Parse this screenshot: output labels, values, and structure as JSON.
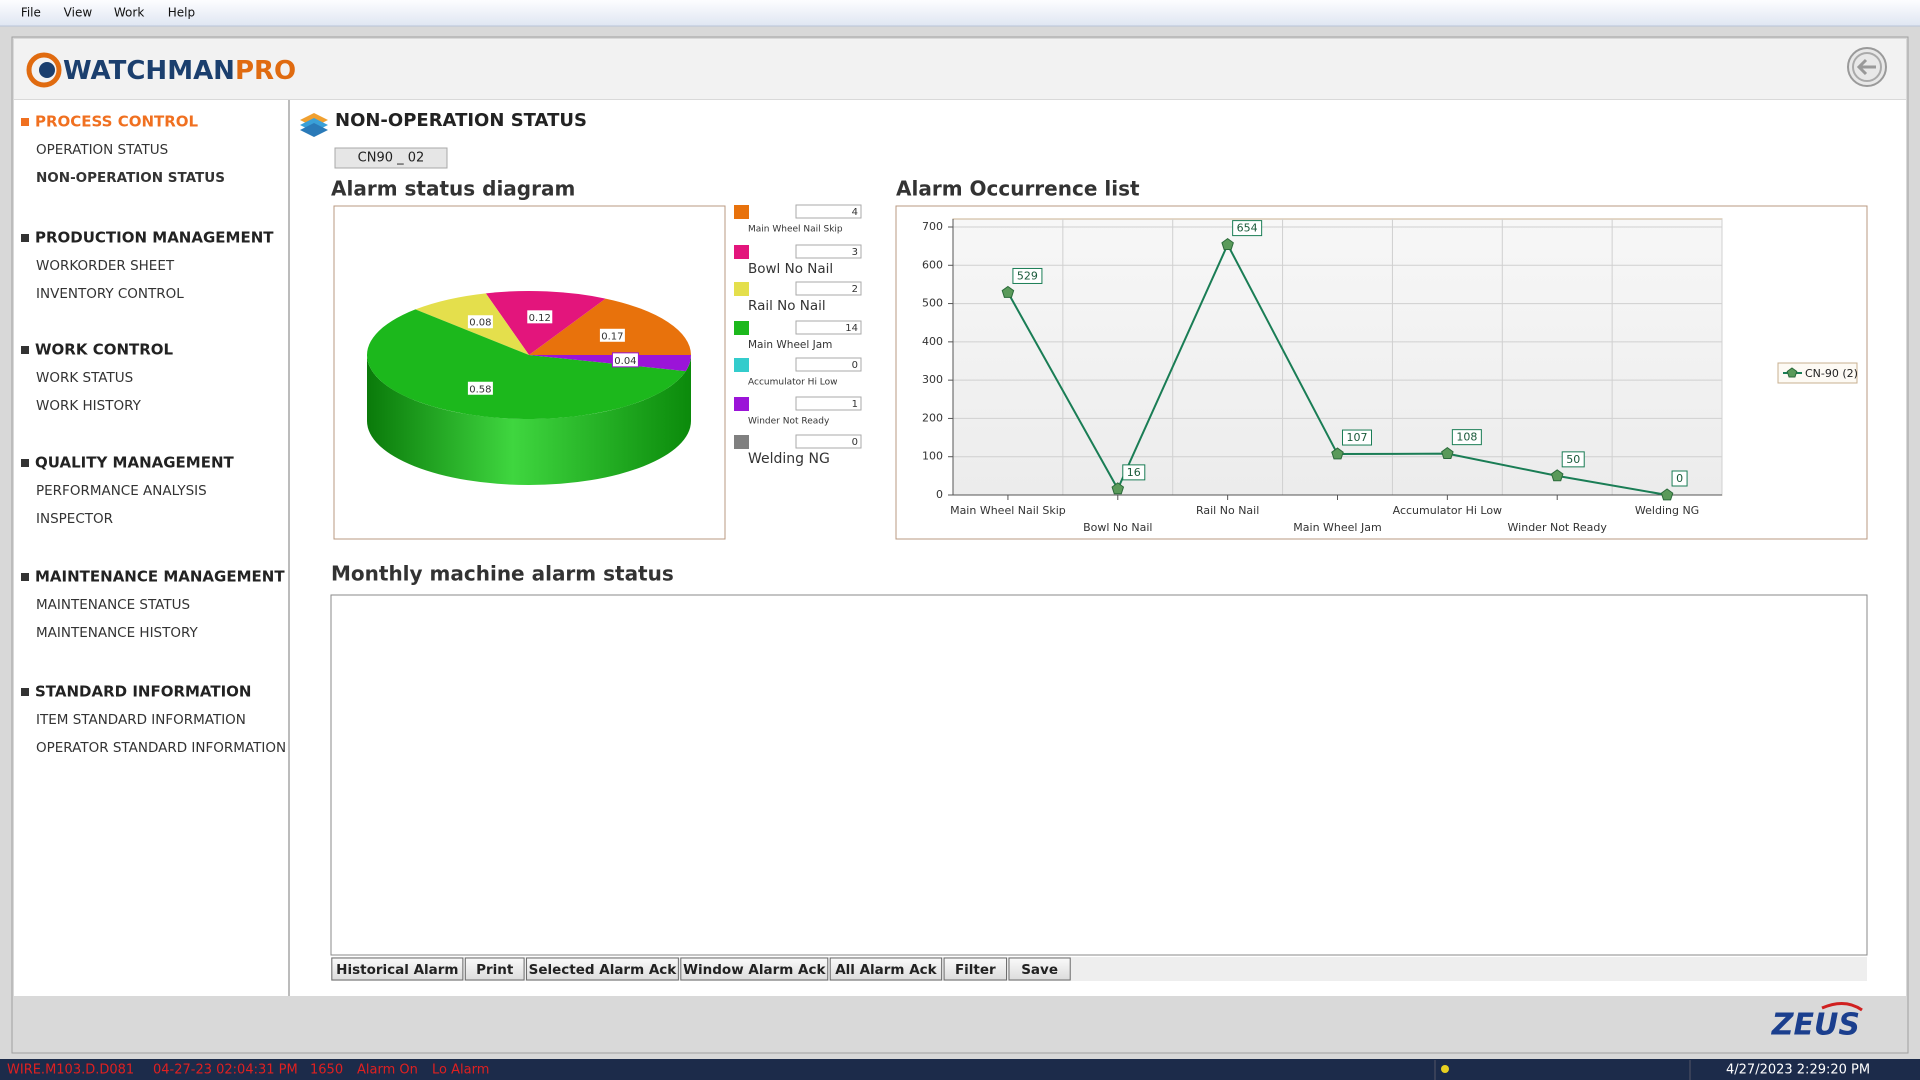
{
  "menu": [
    "File",
    "View",
    "Work",
    "Help"
  ],
  "header": {
    "logo_main": "WATCHMAN",
    "logo_accent": "PRO"
  },
  "sidebar": [
    {
      "title": "PROCESS CONTROL",
      "items": [
        "OPERATION STATUS",
        "NON-OPERATION STATUS"
      ]
    },
    {
      "title": "PRODUCTION MANAGEMENT",
      "items": [
        "WORKORDER SHEET",
        "INVENTORY CONTROL"
      ]
    },
    {
      "title": "WORK CONTROL",
      "items": [
        "WORK STATUS",
        "WORK HISTORY"
      ]
    },
    {
      "title": "QUALITY MANAGEMENT",
      "items": [
        "PERFORMANCE ANALYSIS",
        "INSPECTOR"
      ]
    },
    {
      "title": "MAINTENANCE MANAGEMENT",
      "items": [
        "MAINTENANCE STATUS",
        "MAINTENANCE HISTORY"
      ]
    },
    {
      "title": "STANDARD INFORMATION",
      "items": [
        "ITEM STANDARD INFORMATION",
        "OPERATOR STANDARD INFORMATION"
      ]
    }
  ],
  "page": {
    "title": "NON-OPERATION STATUS",
    "machine": "CN90 _ 02",
    "monthly_title": "Monthly machine alarm status"
  },
  "chart_data": [
    {
      "type": "pie",
      "title": "Alarm status diagram",
      "categories": [
        "Main Wheel Nail Skip",
        "Bowl No Nail",
        "Rail No Nail",
        "Main Wheel Jam",
        "Accumulator Hi Low",
        "Winder Not Ready",
        "Welding NG"
      ],
      "values": [
        0.17,
        0.12,
        0.08,
        0.58,
        0,
        0.04,
        0
      ],
      "counts": [
        4,
        3,
        2,
        14,
        0,
        1,
        0
      ],
      "colors": [
        "#e8720c",
        "#e3157c",
        "#e4df4c",
        "#1cb81c",
        "#33cccc",
        "#9b14d8",
        "#808080"
      ]
    },
    {
      "type": "line",
      "title": "Alarm Occurrence list",
      "categories": [
        "Main Wheel Nail Skip",
        "Bowl No Nail",
        "Rail No Nail",
        "Main Wheel Jam",
        "Accumulator Hi Low",
        "Winder Not Ready",
        "Welding NG"
      ],
      "series": [
        {
          "name": "CN-90 (2)",
          "color": "#1a7d55",
          "values": [
            529,
            16,
            654,
            107,
            108,
            50,
            0
          ]
        }
      ],
      "ylim": [
        0,
        700
      ],
      "yticks": [
        0,
        100,
        200,
        300,
        400,
        500,
        600,
        700
      ],
      "grid": true
    }
  ],
  "buttons": [
    "Historical Alarm",
    "Print",
    "Selected Alarm Ack",
    "Window Alarm Ack",
    "All Alarm Ack",
    "Filter",
    "Save"
  ],
  "footer_logo": "ZEUS",
  "status_bar": {
    "items": [
      "WIRE.M103.D.D081",
      "04-27-23 02:04:31 PM",
      "1650",
      "Alarm On",
      "Lo Alarm"
    ],
    "clock": "4/27/2023 2:29:20 PM"
  }
}
